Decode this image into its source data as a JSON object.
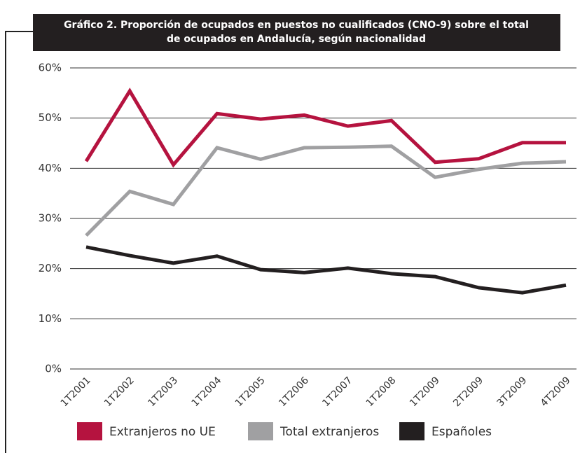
{
  "chart_data": {
    "type": "line",
    "title": "Gráfico 2. Proporción de ocupados en puestos no cualificados (CNO-9) sobre el total de ocupados en Andalucía, según nacionalidad",
    "categories": [
      "1T2001",
      "1T2002",
      "1T2003",
      "1T2004",
      "1T2005",
      "1T2006",
      "1T2007",
      "1T2008",
      "1T2009",
      "2T2009",
      "3T2009",
      "4T2009"
    ],
    "series": [
      {
        "name": "Extranjeros no UE",
        "color": "#b5133f",
        "values": [
          41.4,
          55.4,
          40.7,
          50.9,
          49.8,
          50.6,
          48.4,
          49.5,
          41.2,
          41.9,
          45.1,
          45.1
        ]
      },
      {
        "name": "Total extranjeros",
        "color": "#a0a0a2",
        "values": [
          26.6,
          35.4,
          32.8,
          44.1,
          41.8,
          44.1,
          44.2,
          44.4,
          38.2,
          39.8,
          41.0,
          41.3
        ]
      },
      {
        "name": "Españoles",
        "color": "#231f20",
        "values": [
          24.3,
          22.6,
          21.1,
          22.5,
          19.8,
          19.2,
          20.1,
          19.0,
          18.4,
          16.2,
          15.2,
          16.7
        ]
      }
    ],
    "ylim": [
      0,
      60
    ],
    "yticks": [
      {
        "value": 0,
        "label": "0%"
      },
      {
        "value": 10,
        "label": "10%"
      },
      {
        "value": 20,
        "label": "20%"
      },
      {
        "value": 30,
        "label": "30%"
      },
      {
        "value": 40,
        "label": "40%"
      },
      {
        "value": 50,
        "label": "50%"
      },
      {
        "value": 60,
        "label": "60%"
      }
    ],
    "grid": true
  }
}
